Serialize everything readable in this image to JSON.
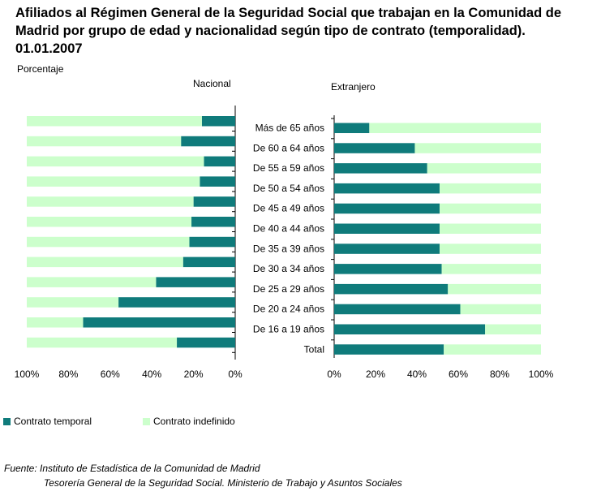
{
  "title": "Afiliados al Régimen General de la Seguridad Social que trabajan en la Comunidad de Madrid por grupo de edad y nacionalidad según tipo de contrato (temporalidad). 01.01.2007",
  "unit_label": "Porcentaje",
  "colors": {
    "temporal": "#0f7b7b",
    "indefinido": "#ccffcc"
  },
  "chart_data": [
    {
      "type": "bar",
      "orientation": "horizontal",
      "stacked": true,
      "panel_title": "Nacional",
      "x_reversed": true,
      "xlim": [
        0,
        100
      ],
      "tick_labels": [
        "100%",
        "80%",
        "60%",
        "40%",
        "20%",
        "0%"
      ],
      "categories": [
        "Más de 65 años",
        "De 60 a 64 años",
        "De 55 a 59 años",
        "De 50 a 54 años",
        "De 45 a 49 años",
        "De 40 a 44 años",
        "De 35 a 39 años",
        "De 30 a 34 años",
        "De 25 a 29 años",
        "De 20 a 24 años",
        "De 16 a 19 años",
        "Total"
      ],
      "series": [
        {
          "name": "Contrato temporal",
          "values": [
            16,
            26,
            15,
            17,
            20,
            21,
            22,
            25,
            38,
            56,
            73,
            28
          ]
        },
        {
          "name": "Contrato indefinido",
          "values": [
            84,
            74,
            85,
            83,
            80,
            79,
            78,
            75,
            62,
            44,
            27,
            72
          ]
        }
      ]
    },
    {
      "type": "bar",
      "orientation": "horizontal",
      "stacked": true,
      "panel_title": "Extranjero",
      "xlim": [
        0,
        100
      ],
      "tick_labels": [
        "0%",
        "20%",
        "40%",
        "60%",
        "80%",
        "100%"
      ],
      "categories": [
        "Más de 65 años",
        "De 60 a 64 años",
        "De 55 a 59 años",
        "De 50 a 54 años",
        "De 45 a 49 años",
        "De 40 a 44 años",
        "De 35 a 39 años",
        "De 30 a 34 años",
        "De 25 a 29 años",
        "De 20 a 24 años",
        "De 16 a 19 años",
        "Total"
      ],
      "series": [
        {
          "name": "Contrato temporal",
          "values": [
            17,
            39,
            45,
            51,
            51,
            51,
            51,
            52,
            55,
            61,
            73,
            53
          ]
        },
        {
          "name": "Contrato indefinido",
          "values": [
            83,
            61,
            55,
            49,
            49,
            49,
            49,
            48,
            45,
            39,
            27,
            47
          ]
        }
      ]
    }
  ],
  "legend": [
    "Contrato temporal",
    "Contrato indefinido"
  ],
  "source": {
    "line1": "Fuente: Instituto de Estadística de la Comunidad de Madrid",
    "line2": "Tesorería General de la Seguridad Social. Ministerio de Trabajo y Asuntos Sociales"
  }
}
